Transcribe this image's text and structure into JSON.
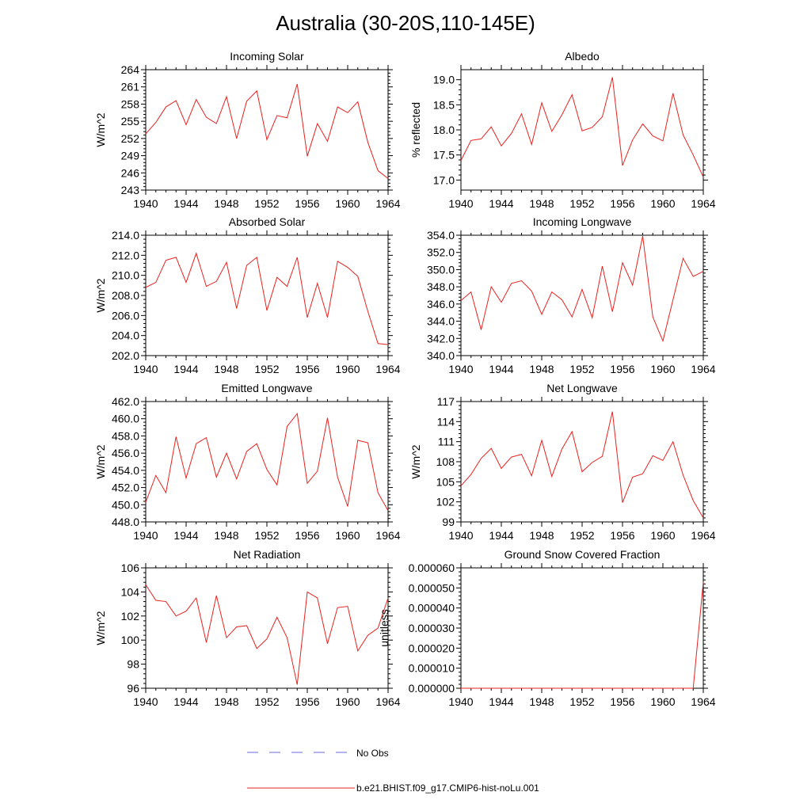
{
  "title": "Australia (30-20S,110-145E)",
  "legend": {
    "no_obs_label": "No Obs",
    "no_obs_color": "#6a6ae0",
    "model_label": "b.e21.BHIST.f09_g17.CMIP6-hist-noLu.001",
    "model_color": "#e8221e"
  },
  "chart_data": [
    {
      "type": "line",
      "title": "Incoming Solar",
      "ylabel": "W/m^2",
      "xlim": [
        1940,
        1964
      ],
      "ylim": [
        243,
        264
      ],
      "xticks": [
        1940,
        1944,
        1948,
        1952,
        1956,
        1960,
        1964
      ],
      "yticks": [
        243,
        246,
        249,
        252,
        255,
        258,
        261,
        264
      ],
      "ytick_labels": [
        "243",
        "246",
        "249",
        "252",
        "255",
        "258",
        "261",
        "264"
      ],
      "x": [
        1940,
        1941,
        1942,
        1943,
        1944,
        1945,
        1946,
        1947,
        1948,
        1949,
        1950,
        1951,
        1952,
        1953,
        1954,
        1955,
        1956,
        1957,
        1958,
        1959,
        1960,
        1961,
        1962,
        1963,
        1964
      ],
      "series": [
        {
          "values": [
            252.8,
            254.8,
            257.5,
            258.6,
            254.4,
            258.8,
            255.7,
            254.6,
            259.3,
            252.0,
            258.5,
            260.3,
            251.8,
            256.0,
            255.6,
            261.5,
            248.9,
            254.6,
            251.5,
            257.5,
            256.5,
            258.4,
            251.3,
            246.4,
            245.0
          ]
        }
      ]
    },
    {
      "type": "line",
      "title": "Albedo",
      "ylabel": "% reflected",
      "xlim": [
        1940,
        1964
      ],
      "ylim": [
        16.8,
        19.2
      ],
      "xticks": [
        1940,
        1944,
        1948,
        1952,
        1956,
        1960,
        1964
      ],
      "yticks": [
        17.0,
        17.5,
        18.0,
        18.5,
        19.0
      ],
      "ytick_labels": [
        "17.0",
        "17.5",
        "18.0",
        "18.5",
        "19.0"
      ],
      "x": [
        1940,
        1941,
        1942,
        1943,
        1944,
        1945,
        1946,
        1947,
        1948,
        1949,
        1950,
        1951,
        1952,
        1953,
        1954,
        1955,
        1956,
        1957,
        1958,
        1959,
        1960,
        1961,
        1962,
        1963,
        1964
      ],
      "series": [
        {
          "values": [
            17.39,
            17.79,
            17.82,
            18.06,
            17.68,
            17.93,
            18.32,
            17.71,
            18.54,
            17.97,
            18.3,
            18.7,
            17.98,
            18.05,
            18.26,
            19.05,
            17.29,
            17.8,
            18.12,
            17.88,
            17.78,
            18.73,
            17.9,
            17.5,
            17.06
          ]
        }
      ]
    },
    {
      "type": "line",
      "title": "Absorbed Solar",
      "ylabel": "W/m^2",
      "xlim": [
        1940,
        1964
      ],
      "ylim": [
        202,
        214
      ],
      "xticks": [
        1940,
        1944,
        1948,
        1952,
        1956,
        1960,
        1964
      ],
      "yticks": [
        202,
        204,
        206,
        208,
        210,
        212,
        214
      ],
      "ytick_labels": [
        "202.0",
        "204.0",
        "206.0",
        "208.0",
        "210.0",
        "212.0",
        "214.0"
      ],
      "x": [
        1940,
        1941,
        1942,
        1943,
        1944,
        1945,
        1946,
        1947,
        1948,
        1949,
        1950,
        1951,
        1952,
        1953,
        1954,
        1955,
        1956,
        1957,
        1958,
        1959,
        1960,
        1961,
        1962,
        1963,
        1964
      ],
      "series": [
        {
          "values": [
            208.8,
            209.3,
            211.5,
            211.8,
            209.3,
            212.2,
            208.9,
            209.4,
            211.3,
            206.7,
            211.0,
            211.8,
            206.5,
            209.8,
            208.9,
            211.8,
            205.8,
            209.2,
            205.8,
            211.4,
            210.8,
            209.9,
            206.4,
            203.2,
            203.1
          ]
        }
      ]
    },
    {
      "type": "line",
      "title": "Incoming Longwave",
      "ylabel": "",
      "xlim": [
        1940,
        1964
      ],
      "ylim": [
        340,
        354
      ],
      "xticks": [
        1940,
        1944,
        1948,
        1952,
        1956,
        1960,
        1964
      ],
      "yticks": [
        340,
        342,
        344,
        346,
        348,
        350,
        352,
        354
      ],
      "ytick_labels": [
        "340.0",
        "342.0",
        "344.0",
        "346.0",
        "348.0",
        "350.0",
        "352.0",
        "354.0"
      ],
      "x": [
        1940,
        1941,
        1942,
        1943,
        1944,
        1945,
        1946,
        1947,
        1948,
        1949,
        1950,
        1951,
        1952,
        1953,
        1954,
        1955,
        1956,
        1957,
        1958,
        1959,
        1960,
        1961,
        1962,
        1963,
        1964
      ],
      "series": [
        {
          "values": [
            346.4,
            347.4,
            343.0,
            348.0,
            346.2,
            348.4,
            348.7,
            347.5,
            344.8,
            347.4,
            346.5,
            344.5,
            347.7,
            344.4,
            350.4,
            345.1,
            350.8,
            348.2,
            353.9,
            344.5,
            341.7,
            346.5,
            351.3,
            349.2,
            349.8
          ]
        }
      ]
    },
    {
      "type": "line",
      "title": "Emitted Longwave",
      "ylabel": "W/m^2",
      "xlim": [
        1940,
        1964
      ],
      "ylim": [
        448,
        462
      ],
      "xticks": [
        1940,
        1944,
        1948,
        1952,
        1956,
        1960,
        1964
      ],
      "yticks": [
        448,
        450,
        452,
        454,
        456,
        458,
        460,
        462
      ],
      "ytick_labels": [
        "448.0",
        "450.0",
        "452.0",
        "454.0",
        "456.0",
        "458.0",
        "460.0",
        "462.0"
      ],
      "x": [
        1940,
        1941,
        1942,
        1943,
        1944,
        1945,
        1946,
        1947,
        1948,
        1949,
        1950,
        1951,
        1952,
        1953,
        1954,
        1955,
        1956,
        1957,
        1958,
        1959,
        1960,
        1961,
        1962,
        1963,
        1964
      ],
      "series": [
        {
          "values": [
            450.3,
            453.4,
            451.4,
            457.9,
            453.1,
            457.1,
            457.8,
            453.2,
            456.0,
            453.0,
            456.2,
            457.1,
            454.1,
            452.3,
            459.1,
            460.6,
            452.5,
            453.9,
            460.1,
            453.2,
            449.8,
            457.5,
            457.2,
            451.4,
            449.3
          ]
        }
      ]
    },
    {
      "type": "line",
      "title": "Net Longwave",
      "ylabel": "W/m^2",
      "xlim": [
        1940,
        1964
      ],
      "ylim": [
        99,
        117
      ],
      "xticks": [
        1940,
        1944,
        1948,
        1952,
        1956,
        1960,
        1964
      ],
      "yticks": [
        99,
        102,
        105,
        108,
        111,
        114,
        117
      ],
      "ytick_labels": [
        "99",
        "102",
        "105",
        "108",
        "111",
        "114",
        "117"
      ],
      "x": [
        1940,
        1941,
        1942,
        1943,
        1944,
        1945,
        1946,
        1947,
        1948,
        1949,
        1950,
        1951,
        1952,
        1953,
        1954,
        1955,
        1956,
        1957,
        1958,
        1959,
        1960,
        1961,
        1962,
        1963,
        1964
      ],
      "series": [
        {
          "values": [
            104.4,
            106.1,
            108.5,
            110.0,
            107.0,
            108.7,
            109.1,
            105.9,
            111.2,
            105.8,
            109.9,
            112.5,
            106.5,
            107.9,
            108.8,
            115.5,
            101.9,
            105.7,
            106.2,
            108.9,
            108.2,
            111.0,
            106.0,
            102.2,
            99.6
          ]
        }
      ]
    },
    {
      "type": "line",
      "title": "Net Radiation",
      "ylabel": "W/m^2",
      "xlim": [
        1940,
        1964
      ],
      "ylim": [
        96,
        106
      ],
      "xticks": [
        1940,
        1944,
        1948,
        1952,
        1956,
        1960,
        1964
      ],
      "yticks": [
        96,
        98,
        100,
        102,
        104,
        106
      ],
      "ytick_labels": [
        "96",
        "98",
        "100",
        "102",
        "104",
        "106"
      ],
      "x": [
        1940,
        1941,
        1942,
        1943,
        1944,
        1945,
        1946,
        1947,
        1948,
        1949,
        1950,
        1951,
        1952,
        1953,
        1954,
        1955,
        1956,
        1957,
        1958,
        1959,
        1960,
        1961,
        1962,
        1963,
        1964
      ],
      "series": [
        {
          "values": [
            104.6,
            103.3,
            103.2,
            102.0,
            102.4,
            103.5,
            99.8,
            103.7,
            100.2,
            101.1,
            101.2,
            99.3,
            100.1,
            101.9,
            100.2,
            96.3,
            104.0,
            103.5,
            99.7,
            102.7,
            102.8,
            99.1,
            100.4,
            101.0,
            103.5
          ]
        }
      ]
    },
    {
      "type": "line",
      "title": "Ground Snow Covered Fraction",
      "ylabel": "unitless",
      "xlim": [
        1940,
        1964
      ],
      "ylim": [
        0,
        6e-05
      ],
      "xticks": [
        1940,
        1944,
        1948,
        1952,
        1956,
        1960,
        1964
      ],
      "yticks": [
        0,
        1e-05,
        2e-05,
        3e-05,
        4e-05,
        5e-05,
        6e-05
      ],
      "ytick_labels": [
        "0.000000",
        "0.000010",
        "0.000020",
        "0.000030",
        "0.000040",
        "0.000050",
        "0.000060"
      ],
      "x": [
        1940,
        1941,
        1942,
        1943,
        1944,
        1945,
        1946,
        1947,
        1948,
        1949,
        1950,
        1951,
        1952,
        1953,
        1954,
        1955,
        1956,
        1957,
        1958,
        1959,
        1960,
        1961,
        1962,
        1963,
        1964
      ],
      "series": [
        {
          "values": [
            0,
            0,
            0,
            0,
            0,
            0,
            0,
            0,
            0,
            0,
            0,
            0,
            0,
            0,
            0,
            0,
            0,
            0,
            0,
            0,
            0,
            0,
            0,
            0,
            5.3e-05
          ]
        }
      ]
    }
  ]
}
